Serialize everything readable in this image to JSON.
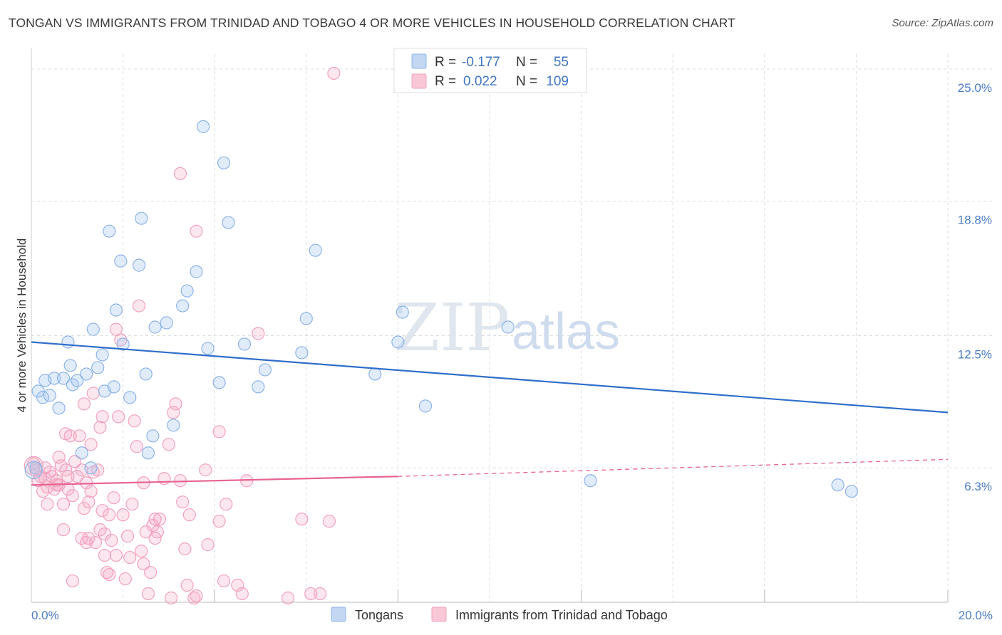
{
  "title": "TONGAN VS IMMIGRANTS FROM TRINIDAD AND TOBAGO 4 OR MORE VEHICLES IN HOUSEHOLD CORRELATION CHART",
  "source": "Source: ZipAtlas.com",
  "watermark": {
    "zip": "ZIP",
    "atlas": "atlas"
  },
  "colors": {
    "tongans": "#8db4e8",
    "tongans_line": "#2f6ecb",
    "trinidad": "#f2a2bd",
    "trinidad_line": "#e8648f",
    "tick": "#4a7cc7",
    "grid": "#dddddd"
  },
  "legend": {
    "r_label": "R =",
    "n_label": "N =",
    "rows": [
      {
        "r": "-0.177",
        "n": "55"
      },
      {
        "r": "0.022",
        "n": "109"
      }
    ]
  },
  "bottom_legend": [
    "Tongans",
    "Immigrants from Trinidad and Tobago"
  ],
  "chart_data": {
    "type": "scatter",
    "xlabel": "",
    "ylabel": "4 or more Vehicles in Household",
    "xlim": [
      0,
      20
    ],
    "ylim": [
      0,
      25.7
    ],
    "x_tick_labels": [
      "0.0%",
      "20.0%"
    ],
    "y_tick_labels": [
      "25.0%",
      "18.8%",
      "12.5%",
      "6.3%"
    ],
    "y_ticks": [
      25.0,
      18.8,
      12.5,
      6.3
    ],
    "grid": true,
    "legend_position": "top-center",
    "series": [
      {
        "name": "Tongans",
        "r": -0.177,
        "n": 55,
        "trend": {
          "x": [
            0,
            20
          ],
          "y": [
            12.2,
            8.9
          ]
        },
        "points": [
          [
            0.1,
            6.3
          ],
          [
            0.15,
            9.9
          ],
          [
            0.25,
            9.6
          ],
          [
            0.3,
            10.4
          ],
          [
            0.4,
            9.7
          ],
          [
            0.5,
            10.5
          ],
          [
            0.6,
            9.1
          ],
          [
            0.7,
            10.5
          ],
          [
            0.8,
            12.2
          ],
          [
            0.85,
            11.1
          ],
          [
            0.9,
            10.2
          ],
          [
            1.0,
            10.4
          ],
          [
            1.1,
            7.0
          ],
          [
            1.2,
            10.7
          ],
          [
            1.3,
            6.3
          ],
          [
            1.35,
            12.8
          ],
          [
            1.45,
            11.0
          ],
          [
            1.55,
            11.6
          ],
          [
            1.6,
            9.9
          ],
          [
            1.7,
            17.4
          ],
          [
            1.8,
            10.1
          ],
          [
            1.85,
            13.7
          ],
          [
            1.95,
            16.0
          ],
          [
            2.0,
            12.1
          ],
          [
            2.15,
            9.6
          ],
          [
            2.35,
            15.8
          ],
          [
            2.4,
            18.0
          ],
          [
            2.5,
            10.7
          ],
          [
            2.55,
            7.0
          ],
          [
            2.65,
            7.8
          ],
          [
            2.7,
            12.9
          ],
          [
            2.95,
            13.1
          ],
          [
            3.1,
            8.3
          ],
          [
            3.3,
            13.9
          ],
          [
            3.4,
            14.6
          ],
          [
            3.6,
            15.5
          ],
          [
            3.75,
            22.3
          ],
          [
            3.85,
            11.9
          ],
          [
            4.1,
            10.3
          ],
          [
            4.2,
            20.6
          ],
          [
            4.3,
            17.8
          ],
          [
            4.65,
            12.1
          ],
          [
            4.95,
            10.1
          ],
          [
            5.1,
            10.9
          ],
          [
            5.9,
            11.7
          ],
          [
            6.0,
            13.3
          ],
          [
            6.2,
            16.5
          ],
          [
            7.5,
            10.7
          ],
          [
            8.0,
            12.2
          ],
          [
            8.1,
            13.6
          ],
          [
            8.6,
            9.2
          ],
          [
            10.4,
            12.9
          ],
          [
            12.2,
            5.7
          ],
          [
            17.6,
            5.5
          ],
          [
            17.9,
            5.2
          ]
        ]
      },
      {
        "name": "Immigrants from Trinidad and Tobago",
        "r": 0.022,
        "n": 109,
        "trend": {
          "x": [
            0,
            8.0,
            20
          ],
          "y": [
            5.5,
            5.9,
            6.7
          ]
        },
        "points": [
          [
            0.05,
            6.5
          ],
          [
            0.1,
            6.2
          ],
          [
            0.15,
            5.7
          ],
          [
            0.2,
            5.9
          ],
          [
            0.25,
            5.2
          ],
          [
            0.3,
            5.8
          ],
          [
            0.35,
            5.4
          ],
          [
            0.35,
            4.6
          ],
          [
            0.4,
            6.1
          ],
          [
            0.45,
            5.9
          ],
          [
            0.5,
            5.3
          ],
          [
            0.55,
            5.7
          ],
          [
            0.6,
            5.5
          ],
          [
            0.6,
            6.8
          ],
          [
            0.65,
            6.4
          ],
          [
            0.7,
            3.4
          ],
          [
            0.7,
            4.6
          ],
          [
            0.75,
            6.2
          ],
          [
            0.75,
            7.9
          ],
          [
            0.8,
            5.9
          ],
          [
            0.8,
            5.3
          ],
          [
            0.85,
            7.8
          ],
          [
            0.9,
            5.0
          ],
          [
            0.95,
            6.6
          ],
          [
            0.9,
            1.0
          ],
          [
            1.0,
            5.9
          ],
          [
            1.05,
            7.8
          ],
          [
            1.1,
            6.2
          ],
          [
            1.1,
            3.0
          ],
          [
            1.15,
            4.4
          ],
          [
            1.2,
            5.6
          ],
          [
            1.2,
            2.8
          ],
          [
            1.25,
            4.7
          ],
          [
            1.25,
            3.0
          ],
          [
            1.3,
            7.4
          ],
          [
            1.3,
            5.2
          ],
          [
            1.35,
            9.8
          ],
          [
            1.35,
            6.1
          ],
          [
            1.4,
            2.8
          ],
          [
            1.45,
            6.2
          ],
          [
            1.5,
            3.4
          ],
          [
            1.5,
            8.2
          ],
          [
            1.55,
            4.3
          ],
          [
            1.55,
            8.7
          ],
          [
            1.6,
            3.2
          ],
          [
            1.6,
            2.2
          ],
          [
            1.65,
            1.4
          ],
          [
            1.7,
            4.1
          ],
          [
            1.7,
            1.3
          ],
          [
            1.75,
            2.9
          ],
          [
            1.8,
            4.9
          ],
          [
            1.85,
            2.2
          ],
          [
            1.85,
            12.8
          ],
          [
            1.9,
            8.7
          ],
          [
            1.95,
            12.3
          ],
          [
            2.0,
            4.1
          ],
          [
            2.05,
            1.1
          ],
          [
            2.1,
            3.1
          ],
          [
            2.15,
            2.1
          ],
          [
            2.2,
            4.6
          ],
          [
            2.25,
            8.5
          ],
          [
            2.3,
            7.3
          ],
          [
            2.35,
            13.9
          ],
          [
            2.4,
            2.4
          ],
          [
            2.45,
            1.8
          ],
          [
            2.5,
            3.3
          ],
          [
            2.55,
            0.4
          ],
          [
            2.6,
            1.4
          ],
          [
            2.65,
            3.6
          ],
          [
            2.7,
            3.0
          ],
          [
            2.7,
            3.9
          ],
          [
            2.75,
            3.3
          ],
          [
            2.8,
            3.9
          ],
          [
            2.9,
            5.8
          ],
          [
            3.0,
            7.4
          ],
          [
            3.05,
            0.2
          ],
          [
            3.1,
            8.9
          ],
          [
            3.15,
            9.3
          ],
          [
            3.25,
            5.7
          ],
          [
            3.3,
            4.7
          ],
          [
            3.35,
            2.5
          ],
          [
            3.4,
            0.8
          ],
          [
            3.45,
            4.1
          ],
          [
            3.55,
            0.2
          ],
          [
            3.6,
            0.3
          ],
          [
            3.6,
            17.4
          ],
          [
            3.8,
            6.2
          ],
          [
            3.85,
            2.7
          ],
          [
            4.1,
            3.8
          ],
          [
            4.1,
            8.0
          ],
          [
            4.2,
            1.0
          ],
          [
            4.25,
            4.6
          ],
          [
            4.5,
            0.8
          ],
          [
            4.6,
            0.4
          ],
          [
            4.7,
            5.7
          ],
          [
            4.95,
            12.6
          ],
          [
            5.6,
            0.2
          ],
          [
            5.9,
            3.9
          ],
          [
            6.1,
            0.4
          ],
          [
            6.3,
            0.4
          ],
          [
            6.5,
            3.8
          ],
          [
            6.6,
            24.8
          ],
          [
            3.25,
            20.1
          ],
          [
            2.45,
            5.6
          ],
          [
            1.15,
            9.3
          ],
          [
            0.55,
            5.5
          ],
          [
            0.3,
            6.3
          ]
        ]
      }
    ]
  }
}
